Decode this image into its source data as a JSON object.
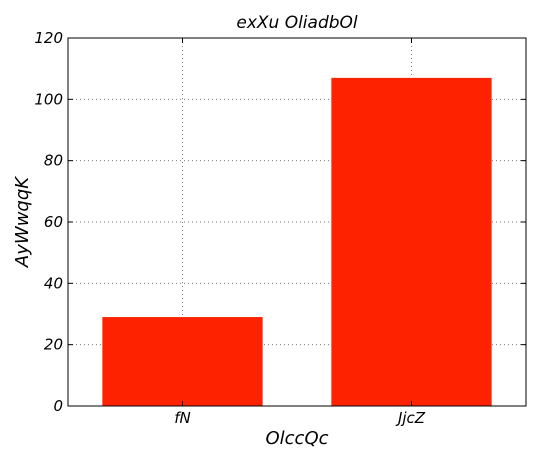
{
  "chart_data": {
    "type": "bar",
    "title": "exXu OliadbOl",
    "xlabel": "OlccQc",
    "ylabel": "AyWwqqK",
    "categories": [
      "fN",
      "JjcZ"
    ],
    "values": [
      29,
      107
    ],
    "ylim": [
      0,
      120
    ],
    "yticks": [
      0,
      20,
      40,
      60,
      80,
      100,
      120
    ],
    "grid": true,
    "bar_color": "#ff2200",
    "grid_color": "#777777"
  }
}
